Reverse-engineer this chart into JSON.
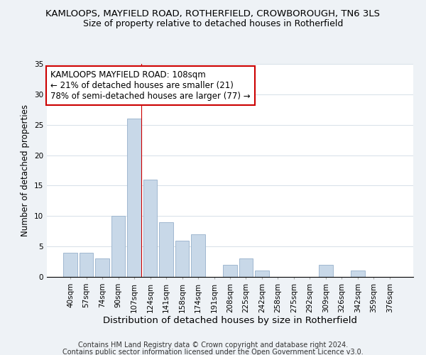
{
  "title": "KAMLOOPS, MAYFIELD ROAD, ROTHERFIELD, CROWBOROUGH, TN6 3LS",
  "subtitle": "Size of property relative to detached houses in Rotherfield",
  "xlabel": "Distribution of detached houses by size in Rotherfield",
  "ylabel": "Number of detached properties",
  "footer_line1": "Contains HM Land Registry data © Crown copyright and database right 2024.",
  "footer_line2": "Contains public sector information licensed under the Open Government Licence v3.0.",
  "bar_labels": [
    "40sqm",
    "57sqm",
    "74sqm",
    "90sqm",
    "107sqm",
    "124sqm",
    "141sqm",
    "158sqm",
    "174sqm",
    "191sqm",
    "208sqm",
    "225sqm",
    "242sqm",
    "258sqm",
    "275sqm",
    "292sqm",
    "309sqm",
    "326sqm",
    "342sqm",
    "359sqm",
    "376sqm"
  ],
  "bar_values": [
    4,
    4,
    3,
    10,
    26,
    16,
    9,
    6,
    7,
    0,
    2,
    3,
    1,
    0,
    0,
    0,
    2,
    0,
    1,
    0,
    0
  ],
  "bar_color": "#c8d8e8",
  "bar_edge_color": "#a0b8d0",
  "highlight_bar_index": 4,
  "ylim": [
    0,
    35
  ],
  "yticks": [
    0,
    5,
    10,
    15,
    20,
    25,
    30,
    35
  ],
  "annotation_title": "KAMLOOPS MAYFIELD ROAD: 108sqm",
  "annotation_line1": "← 21% of detached houses are smaller (21)",
  "annotation_line2": "78% of semi-detached houses are larger (77) →",
  "annotation_box_color": "#ffffff",
  "annotation_box_edge": "#cc0000",
  "bg_color": "#eef2f6",
  "plot_bg_color": "#ffffff",
  "title_fontsize": 9.5,
  "subtitle_fontsize": 9,
  "xlabel_fontsize": 9.5,
  "ylabel_fontsize": 8.5,
  "tick_fontsize": 7.5,
  "annotation_fontsize": 8.5,
  "footer_fontsize": 7
}
